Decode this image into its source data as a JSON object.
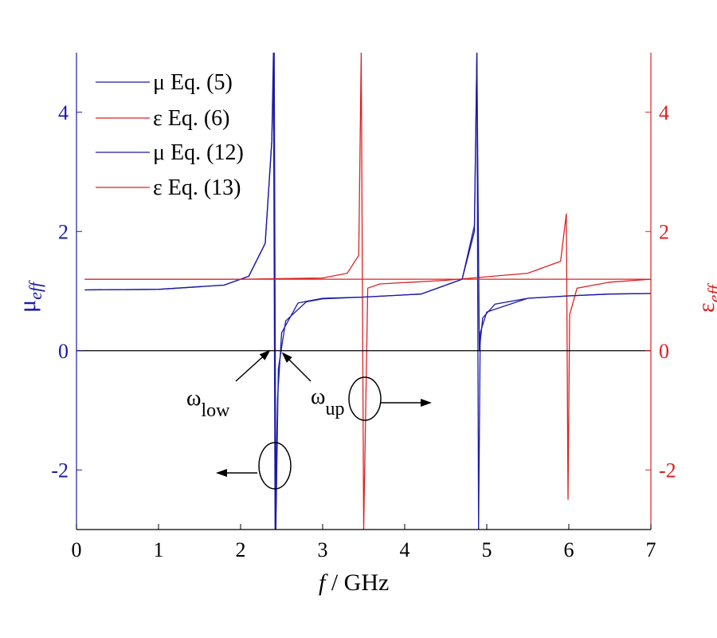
{
  "chart_data": {
    "type": "line",
    "xlabel_italic": "f",
    "xlabel_rest": " / GHz",
    "ylabel_left": {
      "base": "μ",
      "sub": "eff"
    },
    "ylabel_right": {
      "base": "ε",
      "sub": "eff"
    },
    "xlim": [
      0,
      7
    ],
    "ylim": [
      -3,
      5
    ],
    "x_ticks": [
      "0",
      "1",
      "2",
      "3",
      "4",
      "5",
      "6",
      "7"
    ],
    "y_ticks": [
      "-2",
      "0",
      "2",
      "4"
    ],
    "y_tick_values": [
      -2,
      0,
      2,
      4
    ],
    "grid": false,
    "legend_position": "top-left",
    "colors": {
      "mu": "#1a1aa8",
      "eps": "#dd2222",
      "axis_left": "#1a1aa8",
      "axis_right": "#dd2222"
    },
    "series": [
      {
        "name": "μ Eq. (5)",
        "quantity": "mu",
        "x": [
          0.1,
          1.0,
          1.8,
          2.1,
          2.3,
          2.38,
          2.4,
          2.42,
          2.45,
          2.5,
          2.7,
          3.0,
          3.5,
          4.2,
          4.7,
          4.85,
          4.88,
          4.9,
          4.92,
          5.0,
          5.5,
          6.0,
          6.5,
          7.0
        ],
        "values": [
          1.02,
          1.03,
          1.1,
          1.25,
          1.8,
          3.5,
          5.0,
          -3.0,
          -0.8,
          0.3,
          0.8,
          0.88,
          0.9,
          0.95,
          1.2,
          2.1,
          5.0,
          -3.0,
          0.3,
          0.65,
          0.88,
          0.92,
          0.95,
          0.96
        ]
      },
      {
        "name": "ε Eq. (6)",
        "quantity": "eps",
        "x": [
          0.1,
          1.0,
          2.0,
          3.0,
          3.3,
          3.44,
          3.47,
          3.5,
          3.55,
          3.7,
          4.5,
          5.5,
          5.9,
          5.97,
          5.99,
          6.01,
          6.1,
          6.5,
          7.0
        ],
        "values": [
          1.2,
          1.2,
          1.2,
          1.22,
          1.3,
          1.6,
          5.0,
          -3.0,
          1.05,
          1.12,
          1.18,
          1.3,
          1.5,
          2.3,
          -2.5,
          0.6,
          1.05,
          1.15,
          1.2
        ]
      },
      {
        "name": "μ Eq. (12)",
        "quantity": "mu",
        "x": [
          0.1,
          1.0,
          1.8,
          2.1,
          2.3,
          2.38,
          2.41,
          2.43,
          2.46,
          2.55,
          2.8,
          3.0,
          3.5,
          4.2,
          4.7,
          4.85,
          4.88,
          4.91,
          4.95,
          5.1,
          5.5,
          6.0,
          6.5,
          7.0
        ],
        "values": [
          1.02,
          1.03,
          1.1,
          1.25,
          1.8,
          3.5,
          5.0,
          -3.0,
          -0.3,
          0.5,
          0.82,
          0.87,
          0.9,
          0.95,
          1.2,
          2.0,
          5.0,
          0.0,
          0.55,
          0.78,
          0.88,
          0.92,
          0.95,
          0.96
        ]
      },
      {
        "name": "ε Eq. (13)",
        "quantity": "eps",
        "x": [
          0.1,
          1.5,
          2.5,
          3.5,
          4.5,
          5.0,
          5.5,
          6.0,
          6.5,
          7.0
        ],
        "values": [
          1.2,
          1.2,
          1.2,
          1.2,
          1.2,
          1.2,
          1.2,
          1.2,
          1.2,
          1.2
        ]
      }
    ],
    "annotations": [
      {
        "base": "ω",
        "sub": "low"
      },
      {
        "base": "ω",
        "sub": "up"
      }
    ]
  }
}
